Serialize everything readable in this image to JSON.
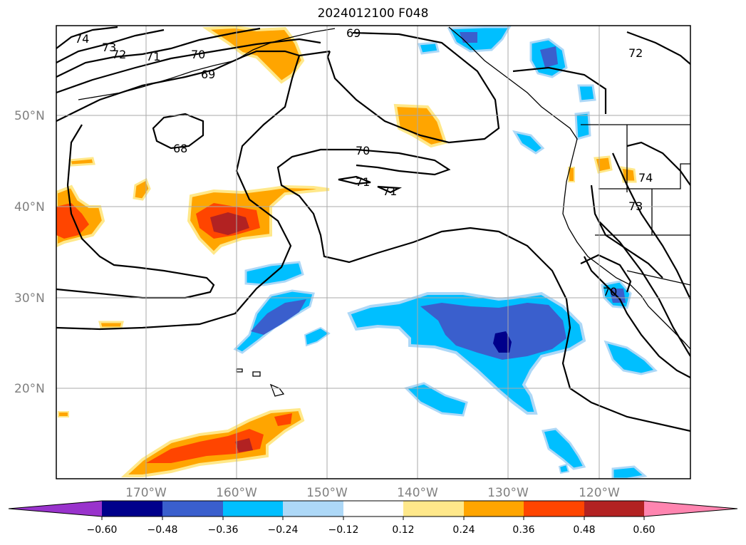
{
  "title": "2024012100 F048",
  "map": {
    "lat_labels": [
      "50°N",
      "40°N",
      "30°N",
      "20°N"
    ],
    "lon_labels": [
      "170°W",
      "160°W",
      "150°W",
      "140°W",
      "130°W",
      "120°W"
    ],
    "contour_labels": [
      "74",
      "73",
      "72",
      "71",
      "70",
      "69",
      "69",
      "68",
      "70",
      "71",
      "71",
      "72",
      "74",
      "73",
      "70"
    ]
  },
  "colorbar": {
    "ticks": [
      "−0.60",
      "−0.48",
      "−0.36",
      "−0.24",
      "−0.12",
      "0.12",
      "0.24",
      "0.36",
      "0.48",
      "0.60"
    ],
    "colors": [
      "#9933cc",
      "#00008b",
      "#3a5fcd",
      "#00bfff",
      "#add8f7",
      "#ffffff",
      "#ffe88a",
      "#ffa500",
      "#ff4500",
      "#b22222",
      "#ff85b0"
    ]
  }
}
